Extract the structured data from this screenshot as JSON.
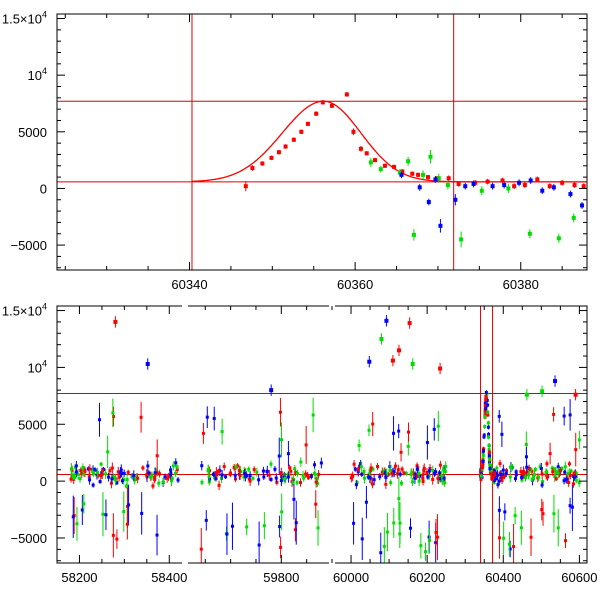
{
  "chart_data": [
    {
      "type": "scatter",
      "xlim": [
        60324,
        60388
      ],
      "ylim": [
        -7200,
        15400
      ],
      "x_ticks": [
        "60340",
        "60360",
        "60380"
      ],
      "x_tick_values": [
        60340,
        60360,
        60380
      ],
      "y_ticks": [
        {
          "value": 15000,
          "label": "1.5×10",
          "sup": "4"
        },
        {
          "value": 10000,
          "label": "10",
          "sup": "4"
        },
        {
          "value": 5000,
          "label": "5000"
        },
        {
          "value": 0,
          "label": "0"
        },
        {
          "value": -5000,
          "label": "−5000"
        }
      ],
      "reference_lines": {
        "horizontal": [
          7700,
          580
        ],
        "vertical": [
          60340.3,
          60371.9
        ]
      },
      "model_curve": {
        "baseline": 580,
        "peak_x": 60356.2,
        "peak_y": 7700,
        "rise_width": 5.0,
        "fall_width": 4.5,
        "start_x": 60340.3
      },
      "series": [
        {
          "color": "#ff0000",
          "points": [
            [
              60346.8,
              200,
              450
            ],
            [
              60347.6,
              1800,
              250
            ],
            [
              60348.8,
              2200,
              200
            ],
            [
              60349.9,
              2700,
              200
            ],
            [
              60350.8,
              3200,
              200
            ],
            [
              60351.6,
              3700,
              200
            ],
            [
              60352.6,
              4300,
              200
            ],
            [
              60353.5,
              5000,
              200
            ],
            [
              60354.3,
              5700,
              200
            ],
            [
              60355.3,
              6600,
              200
            ],
            [
              60356.1,
              7600,
              200
            ],
            [
              60357.2,
              7300,
              200
            ],
            [
              60359.0,
              8300,
              200
            ],
            [
              60359.8,
              5000,
              300
            ],
            [
              60360.7,
              3500,
              250
            ],
            [
              60361.4,
              3100,
              200
            ],
            [
              60362.4,
              2500,
              200
            ],
            [
              60363.6,
              2000,
              200
            ],
            [
              60364.7,
              1900,
              200
            ],
            [
              60365.7,
              1500,
              200
            ],
            [
              60366.9,
              1300,
              200
            ],
            [
              60367.6,
              1200,
              200
            ],
            [
              60368.8,
              1000,
              200
            ],
            [
              60370.0,
              900,
              200
            ],
            [
              60371.3,
              900,
              250
            ],
            [
              60372.5,
              400,
              250
            ],
            [
              60374.5,
              500,
              250
            ],
            [
              60376.0,
              600,
              250
            ],
            [
              60377.8,
              700,
              250
            ],
            [
              60379.2,
              200,
              250
            ],
            [
              60380.5,
              300,
              250
            ],
            [
              60382.0,
              800,
              250
            ],
            [
              60383.5,
              200,
              250
            ],
            [
              60385.0,
              500,
              250
            ],
            [
              60386.5,
              300,
              250
            ],
            [
              60387.6,
              200,
              250
            ]
          ]
        },
        {
          "color": "#00dd00",
          "points": [
            [
              60361.9,
              2300,
              400
            ],
            [
              60363.1,
              1700,
              300
            ],
            [
              60365.4,
              1400,
              300
            ],
            [
              60366.4,
              2400,
              400
            ],
            [
              60367.1,
              -4100,
              500
            ],
            [
              60368.2,
              1200,
              400
            ],
            [
              60369.1,
              2800,
              600
            ],
            [
              60370.1,
              900,
              400
            ],
            [
              60371.2,
              300,
              400
            ],
            [
              60372.8,
              -4500,
              700
            ],
            [
              60375.3,
              -200,
              400
            ],
            [
              60378.5,
              0,
              400
            ],
            [
              60381.1,
              -4000,
              400
            ],
            [
              60384.6,
              -4400,
              400
            ],
            [
              60386.4,
              -2600,
              400
            ]
          ]
        },
        {
          "color": "#0000ff",
          "points": [
            [
              60365.6,
              1200,
              300
            ],
            [
              60367.8,
              100,
              300
            ],
            [
              60368.9,
              -1200,
              300
            ],
            [
              60369.7,
              800,
              300
            ],
            [
              60370.3,
              -3300,
              600
            ],
            [
              60372.1,
              -1000,
              500
            ],
            [
              60373.3,
              200,
              300
            ],
            [
              60374.3,
              400,
              300
            ],
            [
              60376.6,
              200,
              300
            ],
            [
              60378.0,
              300,
              300
            ],
            [
              60379.8,
              500,
              300
            ],
            [
              60381.2,
              700,
              300
            ],
            [
              60382.6,
              -200,
              300
            ],
            [
              60384.0,
              100,
              300
            ],
            [
              60386.0,
              -500,
              300
            ],
            [
              60387.4,
              -1500,
              300
            ]
          ]
        }
      ]
    },
    {
      "type": "scatter",
      "segments": [
        {
          "xlim": [
            58150,
            58435
          ],
          "ticks": [
            58200,
            58400
          ],
          "labels": [
            "58200",
            "58400"
          ]
        },
        {
          "xlim": [
            59610,
            59900
          ],
          "ticks": [
            59800
          ],
          "labels": [
            "59800"
          ]
        },
        {
          "xlim": [
            59950,
            60620
          ],
          "ticks": [
            60000,
            60200,
            60400,
            60600
          ],
          "labels": [
            "60000",
            "60200",
            "60400",
            "60600"
          ]
        }
      ],
      "ylim": [
        -7200,
        15400
      ],
      "y_ticks": [
        {
          "value": 15000,
          "label": "1.5×10",
          "sup": "4"
        },
        {
          "value": 10000,
          "label": "10",
          "sup": "4"
        },
        {
          "value": 5000,
          "label": "5000"
        },
        {
          "value": 0,
          "label": "0"
        },
        {
          "value": -5000,
          "label": "−5000"
        }
      ],
      "reference_lines": {
        "horizontal": [
          7700,
          580
        ],
        "vertical": [
          60340.3,
          60371.9
        ]
      },
      "observing_seasons": [
        [
          58180,
          58420
        ],
        [
          59640,
          59880
        ],
        [
          60000,
          60250
        ],
        [
          60340,
          60380
        ],
        [
          60380,
          60600
        ]
      ],
      "highlighted_points": [
        {
          "x": 58280,
          "y": 14000,
          "color": "#ff0000"
        },
        {
          "x": 58352,
          "y": 10300,
          "color": "#0000ff"
        },
        {
          "x": 60093,
          "y": 14100,
          "color": "#0000ff"
        },
        {
          "x": 60154,
          "y": 13900,
          "color": "#ff0000"
        },
        {
          "x": 60080,
          "y": 12500,
          "color": "#00dd00"
        },
        {
          "x": 60126,
          "y": 11500,
          "color": "#ff0000"
        },
        {
          "x": 60048,
          "y": 10500,
          "color": "#0000ff"
        },
        {
          "x": 60234,
          "y": 9900,
          "color": "#ff0000"
        },
        {
          "x": 60110,
          "y": 10600,
          "color": "#ff0000"
        },
        {
          "x": 60162,
          "y": 10300,
          "color": "#00dd00"
        },
        {
          "x": 60536,
          "y": 8800,
          "color": "#0000ff"
        },
        {
          "x": 59780,
          "y": 8000,
          "color": "#0000ff"
        },
        {
          "x": 60502,
          "y": 7900,
          "color": "#00dd00"
        },
        {
          "x": 60462,
          "y": 7600,
          "color": "#00dd00"
        },
        {
          "x": 60590,
          "y": 7600,
          "color": "#ff0000"
        }
      ],
      "series_colors": [
        "#ff0000",
        "#00dd00",
        "#0000ff"
      ]
    }
  ]
}
